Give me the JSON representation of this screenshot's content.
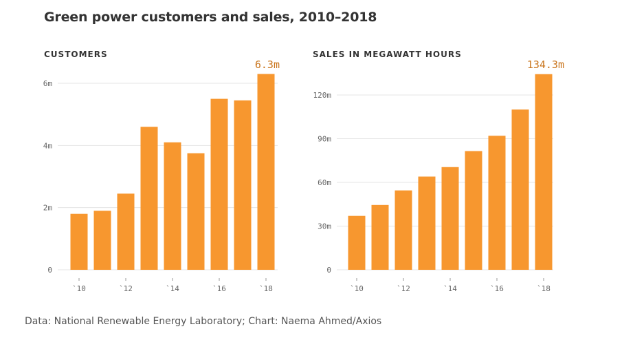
{
  "title": "Green power customers and sales, 2010–2018",
  "source": "Data: National Renewable Energy Laboratory; Chart: Naema Ahmed/Axios",
  "colors": {
    "bar": "#f7972f",
    "grid": "#e5e5e5",
    "callout": "#c9741b"
  },
  "chart_data": [
    {
      "type": "bar",
      "title": "CUSTOMERS",
      "categories": [
        "2010",
        "2011",
        "2012",
        "2013",
        "2014",
        "2015",
        "2016",
        "2017",
        "2018"
      ],
      "x_tick_labels": [
        "`10",
        "`12",
        "`14",
        "`16",
        "`18"
      ],
      "x_tick_indices": [
        0,
        2,
        4,
        6,
        8
      ],
      "values": [
        1.8,
        1.9,
        2.45,
        4.6,
        4.1,
        3.75,
        5.5,
        5.45,
        6.3
      ],
      "ylim": [
        0,
        6
      ],
      "yticks": [
        0,
        2,
        4,
        6
      ],
      "ytick_labels": [
        "0",
        "2m",
        "4m",
        "6m"
      ],
      "callout": "6.3m",
      "grid": true
    },
    {
      "type": "bar",
      "title": "SALES IN MEGAWATT HOURS",
      "categories": [
        "2010",
        "2011",
        "2012",
        "2013",
        "2014",
        "2015",
        "2016",
        "2017",
        "2018"
      ],
      "x_tick_labels": [
        "`10",
        "`12",
        "`14",
        "`16",
        "`18"
      ],
      "x_tick_indices": [
        0,
        2,
        4,
        6,
        8
      ],
      "values": [
        37,
        44.5,
        54.5,
        64,
        70.5,
        81.5,
        92,
        110,
        134.3
      ],
      "ylim": [
        0,
        120
      ],
      "yticks": [
        0,
        30,
        60,
        90,
        120
      ],
      "ytick_labels": [
        "0",
        "30m",
        "60m",
        "90m",
        "120m"
      ],
      "callout": "134.3m",
      "grid": true
    }
  ]
}
